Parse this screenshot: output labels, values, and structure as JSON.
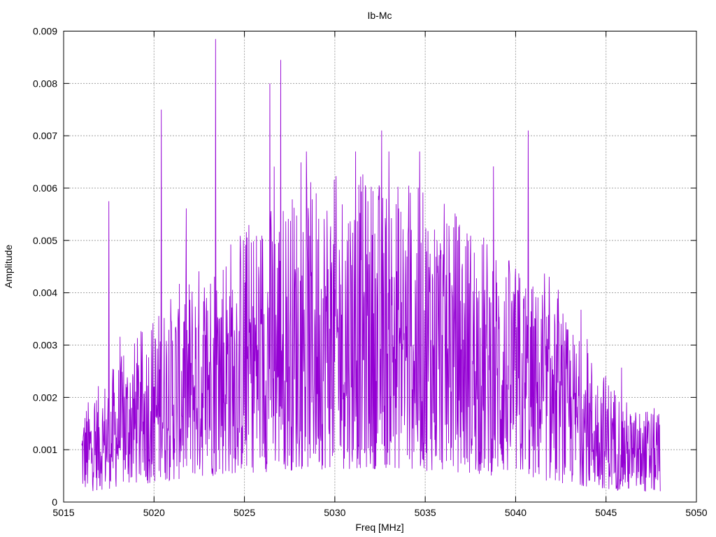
{
  "chart_data": {
    "type": "line",
    "title": "Ib-Mc",
    "xlabel": "Freq [MHz]",
    "ylabel": "Amplitude",
    "xlim": [
      5015,
      5050
    ],
    "ylim": [
      0,
      0.009
    ],
    "xticks": [
      "5015",
      "5020",
      "5025",
      "5030",
      "5035",
      "5040",
      "5045",
      "5050"
    ],
    "yticks": [
      "0",
      "0.001",
      "0.002",
      "0.003",
      "0.004",
      "0.005",
      "0.006",
      "0.007",
      "0.008",
      "0.009"
    ],
    "grid": true,
    "series": [
      {
        "color": "#9400d3",
        "x_range": [
          5016,
          5048
        ],
        "point_count": 1600,
        "notable_peaks": [
          {
            "x": 5017.5,
            "y": 0.00575
          },
          {
            "x": 5020.4,
            "y": 0.0075
          },
          {
            "x": 5023.4,
            "y": 0.00885
          },
          {
            "x": 5026.4,
            "y": 0.008
          },
          {
            "x": 5027.0,
            "y": 0.00845
          },
          {
            "x": 5032.6,
            "y": 0.0071
          },
          {
            "x": 5040.7,
            "y": 0.0071
          }
        ]
      }
    ]
  }
}
